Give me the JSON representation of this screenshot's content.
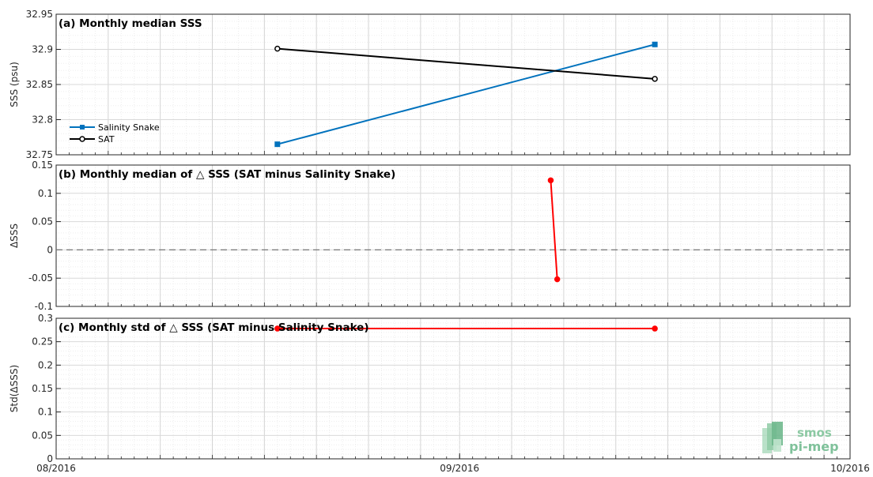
{
  "chart_data": [
    {
      "type": "line",
      "title": "(a) Monthly median SSS",
      "ylabel": "SSS (psu)",
      "ylim": [
        32.75,
        32.95
      ],
      "yticks": [
        "32.75",
        "32.8",
        "32.85",
        "32.9",
        "32.95"
      ],
      "xlim": [
        "2016-08-01",
        "2016-10-01"
      ],
      "grid": true,
      "legend_position": "left",
      "series": [
        {
          "name": "Salinity Snake",
          "color": "#0072bd",
          "marker": "square",
          "x": [
            "2016-08-18",
            "2016-09-16"
          ],
          "y": [
            32.765,
            32.907
          ]
        },
        {
          "name": "SAT",
          "color": "#000000",
          "marker": "circle",
          "x": [
            "2016-08-18",
            "2016-09-16"
          ],
          "y": [
            32.901,
            32.858
          ]
        }
      ]
    },
    {
      "type": "line",
      "title": "(b) Monthly median of △ SSS (SAT minus Salinity Snake)",
      "ylabel": "ΔSSS",
      "ylim": [
        -0.1,
        0.15
      ],
      "yticks": [
        "-0.1",
        "-0.05",
        "0",
        "0.05",
        "0.1",
        "0.15"
      ],
      "xlim": [
        "2016-08-01",
        "2016-10-01"
      ],
      "grid": true,
      "reference_line": {
        "y": 0,
        "style": "dashed",
        "color": "#777777"
      },
      "series": [
        {
          "color": "#ff0000",
          "marker": "circle",
          "x": [
            "2016-09-08",
            "2016-09-08T12:00"
          ],
          "y": [
            0.123,
            -0.052
          ]
        }
      ]
    },
    {
      "type": "line",
      "title": "(c) Monthly std of △ SSS (SAT minus Salinity Snake)",
      "ylabel": "Std(ΔSSS)",
      "ylim": [
        0,
        0.3
      ],
      "yticks": [
        "0",
        "0.05",
        "0.1",
        "0.15",
        "0.2",
        "0.25",
        "0.3"
      ],
      "xlim": [
        "2016-08-01",
        "2016-10-01"
      ],
      "xticks": [
        "08/2016",
        "09/2016",
        "10/2016"
      ],
      "grid": true,
      "series": [
        {
          "color": "#ff0000",
          "marker": "circle",
          "x": [
            "2016-08-18",
            "2016-09-16"
          ],
          "y": [
            0.278,
            0.278
          ]
        }
      ]
    }
  ],
  "logo": {
    "line1": "smos",
    "line2": "pi-mep",
    "color": "#7fc19a"
  }
}
